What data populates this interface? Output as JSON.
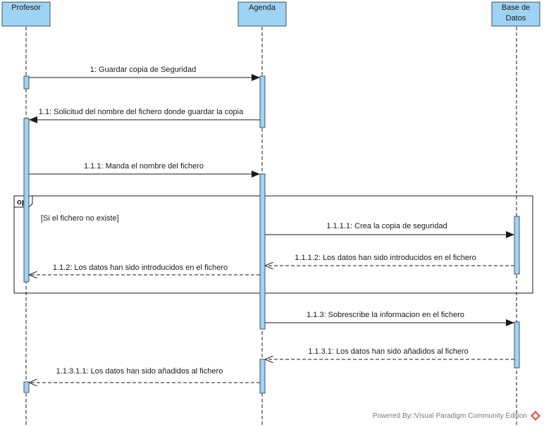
{
  "colors": {
    "box_fill": "#9fd3f3",
    "box_stroke": "#3d5566",
    "line": "#1a1a1a",
    "frame": "#1a1a1a",
    "logo_red": "#e24a3b"
  },
  "lifelines": [
    {
      "id": "profesor",
      "lines": [
        "Profesor"
      ]
    },
    {
      "id": "agenda",
      "lines": [
        "Agenda"
      ]
    },
    {
      "id": "bd",
      "lines": [
        "Base de",
        "Datos"
      ]
    }
  ],
  "messages": [
    {
      "id": "m1",
      "label": "1: Guardar copia de Seguridad",
      "kind": "sync",
      "from": "profesor",
      "to": "agenda"
    },
    {
      "id": "m11",
      "label": "1.1: Solicitud del nombre del fichero donde guardar la copia",
      "kind": "sync",
      "from": "agenda",
      "to": "profesor"
    },
    {
      "id": "m111",
      "label": "1.1.1: Manda el nombre del fichero",
      "kind": "sync",
      "from": "profesor",
      "to": "agenda"
    },
    {
      "id": "m1111",
      "label": "1.1.1.1: Crea la copia de seguridad",
      "kind": "sync",
      "from": "agenda",
      "to": "bd"
    },
    {
      "id": "m1112",
      "label": "1.1.1.2: Los datos han sido introducidos en el fichero",
      "kind": "return",
      "from": "bd",
      "to": "agenda"
    },
    {
      "id": "m112",
      "label": "1.1.2: Los datos han sido introducidos en el fichero",
      "kind": "return",
      "from": "agenda",
      "to": "profesor"
    },
    {
      "id": "m113",
      "label": "1.1.3: Sobrescribe la informacion en el fichero",
      "kind": "sync",
      "from": "agenda",
      "to": "bd"
    },
    {
      "id": "m1131",
      "label": "1.1.3.1: Los datos han sido añadidos al fichero",
      "kind": "return",
      "from": "bd",
      "to": "agenda"
    },
    {
      "id": "m11311",
      "label": "1.1.3.1.1: Los datos han sido añadidos al fichero",
      "kind": "return",
      "from": "agenda",
      "to": "profesor"
    }
  ],
  "fragment": {
    "operator": "opt",
    "guard": "[Si el fichero no existe]"
  },
  "watermark": "Powered By□Visual Paradigm Community Edition"
}
